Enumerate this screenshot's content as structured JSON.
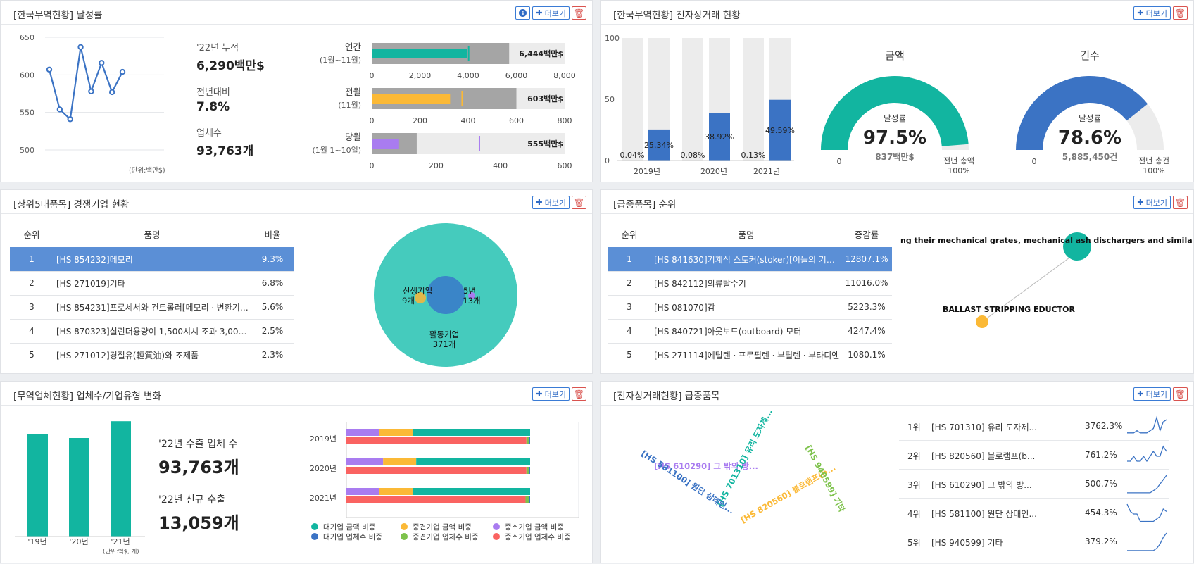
{
  "panels": {
    "achieve": {
      "title": "[한국무역현황] 달성률"
    },
    "ecommerce": {
      "title": "[한국무역현황] 전자상거래 현황"
    },
    "competitors": {
      "title": "[상위5대품목] 경쟁기업 현황"
    },
    "surge": {
      "title": "[급증품목] 순위"
    },
    "companies": {
      "title": "[무역업체현황] 업체수/기업유형 변화"
    },
    "ecsurge": {
      "title": "[전자상거래현황] 급증품목"
    }
  },
  "buttons": {
    "more": "더보기"
  },
  "achieve": {
    "line_chart": {
      "type": "line",
      "values": [
        607,
        554,
        541,
        637,
        578,
        616,
        577,
        604
      ],
      "ylim": [
        500,
        650
      ],
      "yticks": [
        "650",
        "600",
        "550",
        "500"
      ],
      "unit_note": "(단위:백만$)",
      "color": "#3b73c4"
    },
    "stats": [
      {
        "label": "'22년 누적",
        "value": "6,290백만$"
      },
      {
        "label": "전년대비",
        "value": "7.8%"
      },
      {
        "label": "업체수",
        "value": "93,763개"
      }
    ],
    "bars": [
      {
        "label": "연간",
        "sub": "(1월~11월)",
        "value_label": "6,444백만$",
        "total": 5700,
        "actual": 3950,
        "target": 4020,
        "max": 8000,
        "ticks": [
          "0",
          "2,000",
          "4,000",
          "6,000",
          "8,000"
        ],
        "color": "#12b5a0"
      },
      {
        "label": "전월",
        "sub": "(11월)",
        "value_label": "603백만$",
        "total": 600,
        "actual": 325,
        "target": 375,
        "max": 800,
        "ticks": [
          "0",
          "200",
          "400",
          "600",
          "800"
        ],
        "color": "#fbb936"
      },
      {
        "label": "당월",
        "sub": "(1월 1~10일)",
        "value_label": "555백만$",
        "total": 140,
        "actual": 85,
        "target": 335,
        "max": 600,
        "ticks": [
          "0",
          "200",
          "400",
          "600"
        ],
        "color": "#a97cf0"
      }
    ]
  },
  "ecommerce": {
    "bar_chart": {
      "type": "bar",
      "categories": [
        "2019년",
        "2020년",
        "2021년"
      ],
      "values": [
        0.04,
        25.34,
        0.08,
        38.92,
        0.13,
        49.59
      ],
      "labels": [
        "0.04%",
        "25.34%",
        "0.08%",
        "38.92%",
        "0.13%",
        "49.59%"
      ],
      "ylim": [
        0,
        100
      ],
      "yticks": [
        "100",
        "50",
        "0"
      ],
      "color": "#3b73c4"
    },
    "gauges": [
      {
        "title": "금액",
        "caption": "달성률",
        "value": "97.5%",
        "sub": "837백만$",
        "left": "0",
        "right1": "전년 총액",
        "right2": "100%",
        "pct": 97.5,
        "color": "#12b5a0"
      },
      {
        "title": "건수",
        "caption": "달성률",
        "value": "78.6%",
        "sub": "5,885,450건",
        "left": "0",
        "right1": "전년 총건",
        "right2": "100%",
        "pct": 78.6,
        "color": "#3b73c4"
      }
    ]
  },
  "competitors": {
    "headers": [
      "순위",
      "품명",
      "비율"
    ],
    "rows": [
      {
        "rank": "1",
        "name": "[HS 854232]메모리",
        "ratio": "9.3%"
      },
      {
        "rank": "2",
        "name": "[HS 271019]기타",
        "ratio": "6.8%"
      },
      {
        "rank": "3",
        "name": "[HS 854231]프로세서와 컨트롤러[메모리ㆍ변환기…",
        "ratio": "5.6%"
      },
      {
        "rank": "4",
        "name": "[HS 870323]실린더용량이 1,500시시 조과 3,000시시…",
        "ratio": "2.5%"
      },
      {
        "rank": "5",
        "name": "[HS 271012]경질유(輕質油)와 조제품",
        "ratio": "2.3%"
      }
    ],
    "bubbles": [
      {
        "name": "활동기업",
        "count": "371개",
        "color": "#45cbbd"
      },
      {
        "name": "신생기업",
        "count": "9개",
        "color": "#e0b84a"
      },
      {
        "name": "5년",
        "count": "13개",
        "color": "#a97cf0"
      }
    ],
    "core_color": "#3a85c8"
  },
  "surge": {
    "headers": [
      "순위",
      "품명",
      "증감률"
    ],
    "rows": [
      {
        "rank": "1",
        "name": "[HS 841630]기계식 스토커(stoker)[이들의 기계식 화…",
        "ratio": "12807.1%"
      },
      {
        "rank": "2",
        "name": "[HS 842112]의류탈수기",
        "ratio": "11016.0%"
      },
      {
        "rank": "3",
        "name": "[HS 081070]감",
        "ratio": "5223.3%"
      },
      {
        "rank": "4",
        "name": "[HS 840721]아웃보드(outboard) 모터",
        "ratio": "4247.4%"
      },
      {
        "rank": "5",
        "name": "[HS 271114]에틸렌ㆍ프로필렌ㆍ부틸렌ㆍ부타디엔",
        "ratio": "1080.1%"
      }
    ],
    "network": [
      {
        "label": "ng their mechanical grates, mechanical ash dischargers and similar applianc",
        "color": "#12b5a0"
      },
      {
        "label": "BALLAST STRIPPING EDUCTOR",
        "color": "#fbb936"
      }
    ]
  },
  "companies": {
    "bar_chart": {
      "type": "bar",
      "categories": [
        "'19년",
        "'20년",
        "'21년"
      ],
      "values": [
        104,
        100,
        117
      ],
      "unit_note": "(단위:억$, 개)",
      "color": "#12b5a0"
    },
    "stats": [
      {
        "label": "'22년 수출 업체 수",
        "value": "93,763개"
      },
      {
        "label": "'22년 신규 수출",
        "value": "13,059개"
      }
    ],
    "stack_chart": {
      "type": "bar",
      "categories": [
        "2019년",
        "2020년",
        "2021년"
      ],
      "amount": [
        [
          18,
          18,
          64
        ],
        [
          20,
          18,
          62
        ],
        [
          18,
          18,
          64
        ]
      ],
      "count": [
        [
          0.5,
          1.5,
          98
        ],
        [
          0.5,
          1.5,
          98
        ],
        [
          0.5,
          2,
          97.5
        ]
      ],
      "amount_colors": [
        "#a97cf0",
        "#fbb936",
        "#12b5a0"
      ],
      "count_colors": [
        "#3b73c4",
        "#7dc24b",
        "#fa6361"
      ]
    },
    "legend": [
      {
        "label": "대기업 금액 비중",
        "color": "#12b5a0"
      },
      {
        "label": "중견기업 금액 비중",
        "color": "#fbb936"
      },
      {
        "label": "중소기업 금액 비중",
        "color": "#a97cf0"
      },
      {
        "label": "대기업 업체수 비중",
        "color": "#3b73c4"
      },
      {
        "label": "중견기업 업체수 비중",
        "color": "#7dc24b"
      },
      {
        "label": "중소기업 업체수 비중",
        "color": "#fa6361"
      }
    ]
  },
  "ecsurge": {
    "words": [
      {
        "text": "[HS 610290] 그 밖의 방...",
        "color": "#a97cf0"
      },
      {
        "text": "[HS 701310] 유리 도자제...",
        "color": "#12b5a0"
      },
      {
        "text": "[HS 820560] 블로램프(b...",
        "color": "#fbb936"
      },
      {
        "text": "[HS 940599] 기타",
        "color": "#7dc24b"
      },
      {
        "text": "[HS 581100] 원단 상태인...",
        "color": "#3b73c4"
      }
    ],
    "rows": [
      {
        "rank": "1위",
        "name": "[HS 701310] 유리 도자제...",
        "ratio": "3762.3%",
        "spark": [
          2,
          2,
          2,
          3,
          2,
          2,
          2,
          3,
          4,
          9,
          3,
          7,
          8
        ]
      },
      {
        "rank": "2위",
        "name": "[HS 820560] 블로램프(b...",
        "ratio": "761.2%",
        "spark": [
          1,
          1,
          2,
          1,
          1,
          2,
          1,
          2,
          3,
          2,
          2,
          4,
          3
        ]
      },
      {
        "rank": "3위",
        "name": "[HS 610290] 그 밖의 방...",
        "ratio": "500.7%",
        "spark": [
          1,
          1,
          1,
          1,
          1,
          1,
          1,
          1,
          2,
          3,
          5,
          7,
          9
        ]
      },
      {
        "rank": "4위",
        "name": "[HS 581100] 원단 상태인...",
        "ratio": "454.3%",
        "spark": [
          8,
          5,
          4,
          4,
          1,
          1,
          1,
          1,
          1,
          2,
          3,
          6,
          5
        ]
      },
      {
        "rank": "5위",
        "name": "[HS 940599] 기타",
        "ratio": "379.2%",
        "spark": [
          1,
          1,
          1,
          1,
          1,
          1,
          1,
          1,
          1,
          2,
          4,
          7,
          9
        ]
      }
    ],
    "spark_color": "#3b73c4"
  }
}
